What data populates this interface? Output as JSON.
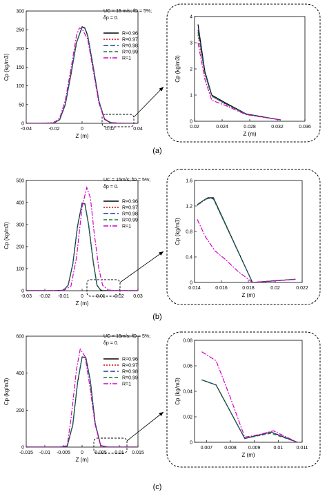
{
  "figure": {
    "panel_labels": [
      "(a)",
      "(b)",
      "(c)"
    ]
  },
  "legend_series": [
    "R=0.96",
    "R=0.97",
    "R=0.98",
    "R=0.99",
    "R=1"
  ],
  "series_colors": [
    "#000000",
    "#d40000",
    "#1f3a9e",
    "#0a7a3c",
    "#d400c8"
  ],
  "series_dash": [
    "",
    "2,2",
    "7,3",
    "5,3",
    "7,2,2,2"
  ],
  "chart_data": [
    {
      "type": "line",
      "panel": "(a)",
      "part": "main",
      "xlabel": "Z (m)",
      "ylabel": "Cp (kg/m3)",
      "xlim": [
        -0.04,
        0.04
      ],
      "ylim": [
        0,
        300
      ],
      "xticks": [
        -0.04,
        -0.02,
        0,
        0.02,
        0.04
      ],
      "xtick_labels": [
        "-0.04",
        "-0.02",
        "0",
        "0.02",
        "0.04"
      ],
      "yticks": [
        0,
        50,
        100,
        150,
        200,
        250,
        300
      ],
      "ytick_labels": [
        "0",
        "50",
        "100",
        "150",
        "200",
        "250",
        "300"
      ],
      "annotation_lines": [
        "UC = 15 m/s;  fD = 5%;",
        "δp = 0."
      ],
      "series": [
        {
          "name": "R=0.96",
          "x": [
            -0.04,
            -0.03,
            -0.02,
            -0.016,
            -0.012,
            -0.008,
            -0.004,
            0,
            0.002,
            0.004,
            0.008,
            0.012,
            0.016,
            0.02,
            0.025,
            0.032,
            0.04
          ],
          "y": [
            0,
            0,
            1,
            10,
            50,
            130,
            215,
            258,
            255,
            235,
            150,
            60,
            12,
            2,
            0.8,
            0,
            0
          ]
        },
        {
          "name": "R=0.97",
          "x": [
            -0.04,
            -0.03,
            -0.02,
            -0.016,
            -0.012,
            -0.008,
            -0.004,
            0,
            0.002,
            0.004,
            0.008,
            0.012,
            0.016,
            0.02,
            0.025,
            0.032,
            0.04
          ],
          "y": [
            0,
            0,
            1,
            10,
            50,
            131,
            216,
            257,
            254,
            234,
            150,
            60,
            12,
            2,
            0.8,
            0,
            0
          ]
        },
        {
          "name": "R=0.98",
          "x": [
            -0.04,
            -0.03,
            -0.02,
            -0.016,
            -0.012,
            -0.008,
            -0.004,
            0,
            0.002,
            0.004,
            0.008,
            0.012,
            0.016,
            0.02,
            0.025,
            0.032,
            0.04
          ],
          "y": [
            0,
            0,
            1,
            10,
            51,
            131,
            216,
            256,
            254,
            234,
            151,
            60,
            12,
            2,
            0.8,
            0,
            0
          ]
        },
        {
          "name": "R=0.99",
          "x": [
            -0.04,
            -0.03,
            -0.02,
            -0.016,
            -0.012,
            -0.008,
            -0.004,
            0,
            0.002,
            0.004,
            0.008,
            0.012,
            0.016,
            0.02,
            0.025,
            0.032,
            0.04
          ],
          "y": [
            0,
            0,
            1,
            10,
            51,
            132,
            217,
            256,
            253,
            233,
            151,
            61,
            12,
            2,
            0.8,
            0,
            0
          ]
        },
        {
          "name": "R=1",
          "x": [
            -0.04,
            -0.03,
            -0.02,
            -0.016,
            -0.012,
            -0.008,
            -0.004,
            -0.002,
            0,
            0.004,
            0.008,
            0.012,
            0.016,
            0.02,
            0.025,
            0.032,
            0.04
          ],
          "y": [
            0,
            0,
            2,
            14,
            62,
            145,
            235,
            255,
            252,
            225,
            140,
            55,
            10,
            2,
            0.8,
            0,
            0
          ]
        }
      ]
    },
    {
      "type": "line",
      "panel": "(a)",
      "part": "zoom",
      "xlabel": "Z (m)",
      "ylabel": "Cp (kg/m3)",
      "xlim": [
        0.02,
        0.036
      ],
      "ylim": [
        0,
        4
      ],
      "xticks": [
        0.02,
        0.024,
        0.028,
        0.032,
        0.036
      ],
      "xtick_labels": [
        "0.02",
        "0.024",
        "0.028",
        "0.032",
        "0.036"
      ],
      "yticks": [
        0,
        1,
        2,
        3,
        4
      ],
      "ytick_labels": [
        "0",
        "1",
        "2",
        "3",
        "4"
      ],
      "series": [
        {
          "name": "R=0.96",
          "x": [
            0.0205,
            0.0215,
            0.0225,
            0.0245,
            0.0275,
            0.0325
          ],
          "y": [
            3.7,
            1.9,
            1.0,
            0.7,
            0.28,
            0.05
          ]
        },
        {
          "name": "R=0.97",
          "x": [
            0.0205,
            0.0215,
            0.0225,
            0.0245,
            0.0275,
            0.0325
          ],
          "y": [
            3.3,
            1.8,
            0.95,
            0.65,
            0.26,
            0.05
          ]
        },
        {
          "name": "R=0.98",
          "x": [
            0.0205,
            0.0215,
            0.0225,
            0.0245,
            0.0275,
            0.0325
          ],
          "y": [
            3.5,
            1.85,
            0.97,
            0.67,
            0.27,
            0.05
          ]
        },
        {
          "name": "R=0.99",
          "x": [
            0.0205,
            0.0215,
            0.0225,
            0.0245,
            0.0275,
            0.0325
          ],
          "y": [
            3.4,
            1.82,
            0.96,
            0.66,
            0.27,
            0.05
          ]
        },
        {
          "name": "R=1",
          "x": [
            0.0205,
            0.0215,
            0.0225,
            0.0245,
            0.0275,
            0.0325
          ],
          "y": [
            3.0,
            1.6,
            0.8,
            0.6,
            0.25,
            0.05
          ]
        }
      ]
    },
    {
      "type": "line",
      "panel": "(b)",
      "part": "main",
      "xlabel": "Z (m)",
      "ylabel": "Cp (kg/m3)",
      "xlim": [
        -0.03,
        0.03
      ],
      "ylim": [
        0,
        500
      ],
      "xticks": [
        -0.03,
        -0.02,
        -0.01,
        0,
        0.01,
        0.02,
        0.03
      ],
      "xtick_labels": [
        "-0.03",
        "-0.02",
        "-0.01",
        "0",
        "0.01",
        "0.02",
        "0.03"
      ],
      "yticks": [
        0,
        100,
        200,
        300,
        400,
        500
      ],
      "ytick_labels": [
        "0",
        "100",
        "200",
        "300",
        "400",
        "500"
      ],
      "annotation_lines": [
        "UC = 15m/s; fD = 5%;",
        "δp = 0."
      ],
      "series": [
        {
          "name": "R=0.96",
          "x": [
            -0.03,
            -0.015,
            -0.01,
            -0.0075,
            -0.005,
            -0.0025,
            0,
            0.0015,
            0.0035,
            0.006,
            0.008,
            0.01,
            0.014,
            0.02,
            0.03
          ],
          "y": [
            0,
            0,
            2,
            25,
            120,
            290,
            398,
            395,
            300,
            130,
            25,
            2,
            0,
            0,
            0
          ]
        },
        {
          "name": "R=0.97",
          "x": [
            -0.03,
            -0.015,
            -0.01,
            -0.0075,
            -0.005,
            -0.0025,
            0,
            0.0015,
            0.0035,
            0.006,
            0.008,
            0.01,
            0.014,
            0.02,
            0.03
          ],
          "y": [
            0,
            0,
            2,
            25,
            121,
            291,
            398,
            394,
            300,
            130,
            25,
            2,
            0,
            0,
            0
          ]
        },
        {
          "name": "R=0.98",
          "x": [
            -0.03,
            -0.015,
            -0.01,
            -0.0075,
            -0.005,
            -0.0025,
            0,
            0.0015,
            0.0035,
            0.006,
            0.008,
            0.01,
            0.014,
            0.02,
            0.03
          ],
          "y": [
            0,
            0,
            2,
            25,
            121,
            291,
            397,
            394,
            299,
            130,
            25,
            2,
            0,
            0,
            0
          ]
        },
        {
          "name": "R=0.99",
          "x": [
            -0.03,
            -0.015,
            -0.01,
            -0.0075,
            -0.005,
            -0.0025,
            0,
            0.0015,
            0.0035,
            0.006,
            0.008,
            0.01,
            0.014,
            0.02,
            0.03
          ],
          "y": [
            0,
            0,
            2,
            26,
            122,
            292,
            397,
            393,
            299,
            130,
            25,
            2,
            0,
            0,
            0
          ]
        },
        {
          "name": "R=1",
          "x": [
            -0.03,
            -0.015,
            -0.01,
            -0.006,
            -0.003,
            0,
            0.0025,
            0.0045,
            0.0065,
            0.009,
            0.011,
            0.014,
            0.02,
            0.03
          ],
          "y": [
            0,
            0,
            1,
            20,
            150,
            380,
            468,
            420,
            260,
            100,
            25,
            3,
            0,
            0
          ]
        }
      ]
    },
    {
      "type": "line",
      "panel": "(b)",
      "part": "zoom",
      "xlabel": "Z (m)",
      "ylabel": "Cp (kg/m3)",
      "xlim": [
        0.014,
        0.022
      ],
      "ylim": [
        0,
        1.6
      ],
      "xticks": [
        0.014,
        0.016,
        0.018,
        0.02,
        0.022
      ],
      "xtick_labels": [
        "0.014",
        "0.016",
        "0.018",
        "0.02",
        "0.022"
      ],
      "yticks": [
        0,
        0.4,
        0.8,
        1.2,
        1.6
      ],
      "ytick_labels": [
        "0",
        "0.4",
        "0.8",
        "1.2",
        "1.6"
      ],
      "series": [
        {
          "name": "R=0.96",
          "x": [
            0.0142,
            0.0146,
            0.015,
            0.0154,
            0.0183,
            0.0215
          ],
          "y": [
            1.22,
            1.28,
            1.33,
            1.33,
            0.0,
            0.05
          ]
        },
        {
          "name": "R=0.97",
          "x": [
            0.0142,
            0.0146,
            0.015,
            0.0154,
            0.0183,
            0.0215
          ],
          "y": [
            1.21,
            1.27,
            1.32,
            1.32,
            0.0,
            0.05
          ]
        },
        {
          "name": "R=0.98",
          "x": [
            0.0142,
            0.0146,
            0.015,
            0.0154,
            0.0183,
            0.0215
          ],
          "y": [
            1.22,
            1.28,
            1.33,
            1.32,
            0.0,
            0.05
          ]
        },
        {
          "name": "R=0.99",
          "x": [
            0.0142,
            0.0146,
            0.015,
            0.0154,
            0.0183,
            0.0215
          ],
          "y": [
            1.21,
            1.28,
            1.32,
            1.31,
            0.0,
            0.05
          ]
        },
        {
          "name": "R=1",
          "x": [
            0.0142,
            0.0148,
            0.0155,
            0.0163,
            0.0172,
            0.0183,
            0.0215
          ],
          "y": [
            0.99,
            0.72,
            0.5,
            0.36,
            0.18,
            0.0,
            0.05
          ]
        }
      ]
    },
    {
      "type": "line",
      "panel": "(c)",
      "part": "main",
      "xlabel": "Z (m)",
      "ylabel": "Cp (kg/m3)",
      "xlim": [
        -0.015,
        0.015
      ],
      "ylim": [
        0,
        600
      ],
      "xticks": [
        -0.015,
        -0.01,
        -0.005,
        0,
        0.005,
        0.01,
        0.015
      ],
      "xtick_labels": [
        "-0.015",
        "-0.01",
        "-0.005",
        "0",
        "0.005",
        "0.01",
        "0.015"
      ],
      "yticks": [
        0,
        200,
        400,
        600
      ],
      "ytick_labels": [
        "0",
        "200",
        "400",
        "600"
      ],
      "annotation_lines": [
        "UC = 15m/s; fD = 5%;",
        "δp = 0."
      ],
      "series": [
        {
          "name": "R=0.96",
          "x": [
            -0.015,
            -0.006,
            -0.004,
            -0.0025,
            -0.0012,
            0,
            0.001,
            0.0022,
            0.0035,
            0.005,
            0.007,
            0.011,
            0.015
          ],
          "y": [
            0,
            0,
            5,
            120,
            350,
            488,
            485,
            360,
            130,
            8,
            0,
            0,
            0
          ]
        },
        {
          "name": "R=0.97",
          "x": [
            -0.015,
            -0.006,
            -0.004,
            -0.0025,
            -0.0012,
            0,
            0.001,
            0.0022,
            0.0035,
            0.005,
            0.007,
            0.011,
            0.015
          ],
          "y": [
            0,
            0,
            5,
            121,
            351,
            487,
            484,
            360,
            130,
            8,
            0,
            0,
            0
          ]
        },
        {
          "name": "R=0.98",
          "x": [
            -0.015,
            -0.006,
            -0.004,
            -0.0025,
            -0.0012,
            0,
            0.001,
            0.0022,
            0.0035,
            0.005,
            0.007,
            0.011,
            0.015
          ],
          "y": [
            0,
            0,
            5,
            121,
            351,
            487,
            484,
            359,
            130,
            8,
            0,
            0,
            0
          ]
        },
        {
          "name": "R=0.99",
          "x": [
            -0.015,
            -0.006,
            -0.004,
            -0.0025,
            -0.0012,
            0,
            0.001,
            0.0022,
            0.0035,
            0.005,
            0.007,
            0.011,
            0.015
          ],
          "y": [
            0,
            0,
            5,
            122,
            352,
            486,
            483,
            359,
            131,
            8,
            0,
            0,
            0
          ]
        },
        {
          "name": "R=1",
          "x": [
            -0.015,
            -0.006,
            -0.004,
            -0.003,
            -0.0015,
            -0.0005,
            0.0008,
            0.002,
            0.0035,
            0.005,
            0.007,
            0.011,
            0.015
          ],
          "y": [
            0,
            0,
            8,
            150,
            420,
            530,
            490,
            340,
            120,
            8,
            0,
            0,
            0
          ]
        }
      ]
    },
    {
      "type": "line",
      "panel": "(c)",
      "part": "zoom",
      "xlabel": "Z (m)",
      "ylabel": "Cp (kg/m3)",
      "xlim": [
        0.0065,
        0.011
      ],
      "ylim": [
        0,
        0.08
      ],
      "xticks": [
        0.007,
        0.008,
        0.009,
        0.01,
        0.011
      ],
      "xtick_labels": [
        "0.007",
        "0.008",
        "0.009",
        "0.01",
        "0.011"
      ],
      "yticks": [
        0,
        0.02,
        0.04,
        0.06,
        0.08
      ],
      "ytick_labels": [
        "0",
        "0.02",
        "0.04",
        "0.06",
        "0.08"
      ],
      "series": [
        {
          "name": "R=0.96",
          "x": [
            0.0068,
            0.0074,
            0.0086,
            0.0097,
            0.0108
          ],
          "y": [
            0.049,
            0.045,
            0.003,
            0.008,
            0.0
          ]
        },
        {
          "name": "R=0.97",
          "x": [
            0.0068,
            0.0074,
            0.0086,
            0.0097,
            0.0108
          ],
          "y": [
            0.049,
            0.045,
            0.003,
            0.008,
            0.0
          ]
        },
        {
          "name": "R=0.98",
          "x": [
            0.0068,
            0.0074,
            0.0086,
            0.0097,
            0.0108
          ],
          "y": [
            0.049,
            0.045,
            0.003,
            0.008,
            0.0
          ]
        },
        {
          "name": "R=0.99",
          "x": [
            0.0068,
            0.0074,
            0.0086,
            0.0097,
            0.0108
          ],
          "y": [
            0.049,
            0.045,
            0.003,
            0.007,
            0.0
          ]
        },
        {
          "name": "R=1",
          "x": [
            0.0068,
            0.0074,
            0.008,
            0.0086,
            0.0092,
            0.0098,
            0.0108
          ],
          "y": [
            0.071,
            0.064,
            0.035,
            0.004,
            0.006,
            0.009,
            0.0
          ]
        }
      ]
    }
  ]
}
